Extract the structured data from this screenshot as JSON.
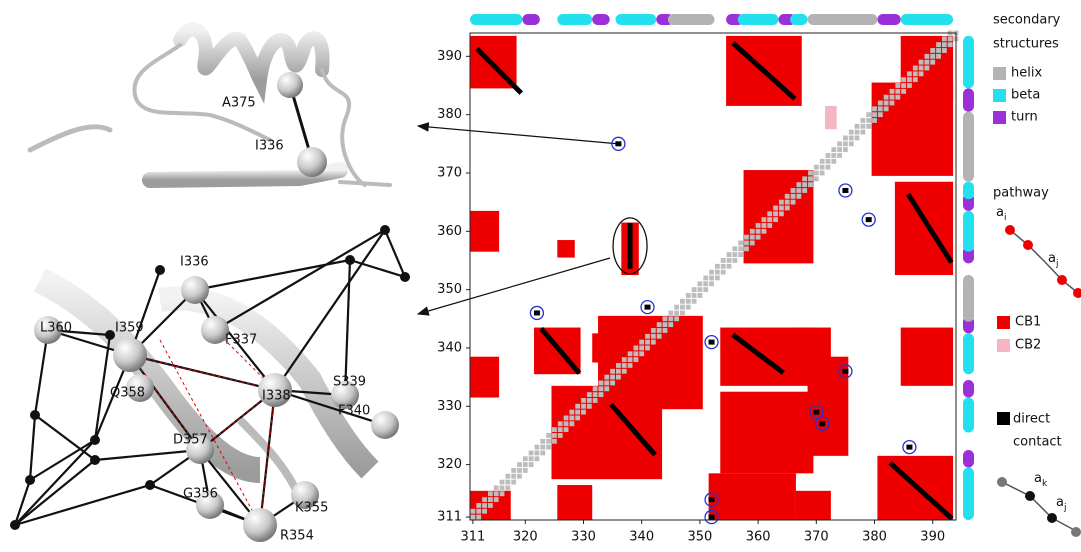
{
  "chart_data": {
    "type": "contact-map",
    "xlim": [
      310.5,
      394
    ],
    "ylim": [
      310.5,
      394
    ],
    "xticks": [
      311,
      320,
      330,
      340,
      350,
      360,
      370,
      380,
      390
    ],
    "yticks": [
      311,
      320,
      330,
      340,
      350,
      360,
      370,
      380,
      390
    ],
    "diagonal_offsets": [
      -1,
      0,
      1
    ],
    "diagonal_color": "#bdbdbd",
    "cb1_color": "#ee0000",
    "cb2_color": "#f4b6c2",
    "direct_color": "#000000",
    "circle_color": "#2233cc",
    "secondary_structure": [
      [
        311,
        319,
        "beta"
      ],
      [
        320,
        322,
        "turn"
      ],
      [
        326,
        331,
        "beta"
      ],
      [
        332,
        334,
        "turn"
      ],
      [
        336,
        342,
        "beta"
      ],
      [
        343,
        345,
        "turn"
      ],
      [
        345,
        352,
        "helix"
      ],
      [
        355,
        357,
        "turn"
      ],
      [
        357,
        363,
        "beta"
      ],
      [
        364,
        366,
        "turn"
      ],
      [
        366,
        368,
        "beta"
      ],
      [
        369,
        380,
        "helix"
      ],
      [
        381,
        384,
        "turn"
      ],
      [
        385,
        393,
        "beta"
      ]
    ],
    "cb1_regions": [
      [
        311,
        318,
        385,
        393
      ],
      [
        355,
        367,
        382,
        393
      ],
      [
        385,
        393,
        383,
        393
      ],
      [
        380,
        393,
        370,
        385
      ],
      [
        358,
        369,
        355,
        370
      ],
      [
        384,
        393,
        353,
        368
      ],
      [
        311,
        315,
        357,
        363
      ],
      [
        326,
        328,
        356,
        358
      ],
      [
        337,
        339,
        353,
        361
      ],
      [
        322,
        329,
        336,
        343
      ],
      [
        333,
        350,
        330,
        345
      ],
      [
        354,
        369,
        334,
        343
      ],
      [
        325,
        343,
        318,
        333
      ],
      [
        354,
        369,
        319,
        332
      ],
      [
        311,
        315,
        332,
        338
      ],
      [
        367,
        372,
        336,
        343
      ],
      [
        311,
        317,
        311,
        315
      ],
      [
        326,
        331,
        311,
        316
      ],
      [
        352,
        366,
        311,
        318
      ],
      [
        367,
        372,
        311,
        315
      ],
      [
        381,
        393,
        311,
        321
      ],
      [
        385,
        393,
        334,
        343
      ],
      [
        369,
        375,
        322,
        338
      ],
      [
        332,
        337,
        338,
        342
      ]
    ],
    "cb2_regions": [
      [
        372,
        373,
        378,
        381
      ]
    ],
    "direct_contacts": [
      [
        312,
        391,
        319,
        384
      ],
      [
        356,
        392,
        366,
        383
      ],
      [
        386,
        366,
        393,
        355
      ],
      [
        338,
        361,
        338,
        354
      ],
      [
        323,
        343,
        329,
        336
      ],
      [
        356,
        342,
        364,
        336
      ],
      [
        335,
        330,
        342,
        322
      ],
      [
        383,
        320,
        393,
        311
      ]
    ],
    "circled": [
      [
        336,
        375
      ],
      [
        322,
        346
      ],
      [
        341,
        347
      ],
      [
        352,
        341
      ],
      [
        375,
        336
      ],
      [
        352,
        314
      ],
      [
        352,
        311
      ],
      [
        386,
        323
      ],
      [
        371,
        327
      ],
      [
        375,
        367
      ],
      [
        379,
        362
      ],
      [
        370,
        329
      ]
    ]
  },
  "structures": {
    "top_labels": [
      "A375",
      "I336"
    ],
    "bottom_labels": [
      "I336",
      "L360",
      "I359",
      "F337",
      "Q358",
      "I338",
      "S339",
      "F340",
      "D357",
      "G356",
      "K355",
      "R354"
    ]
  },
  "legend": {
    "ss_title": [
      "secondary",
      "structures"
    ],
    "ss_items": [
      {
        "name": "helix",
        "color": "#b3b3b3"
      },
      {
        "name": "beta",
        "color": "#22e0ee"
      },
      {
        "name": "turn",
        "color": "#9b30d9"
      }
    ],
    "pathway_title": "pathway",
    "pathway_top": [
      {
        "base": "a",
        "sub": "i"
      },
      {
        "base": "a",
        "sub": "j"
      }
    ],
    "map_items": [
      {
        "name": "CB1",
        "color": "#ee0000"
      },
      {
        "name": "CB2",
        "color": "#f4b6c2"
      }
    ],
    "direct": [
      "direct",
      "contact"
    ],
    "pathway_bottom": [
      {
        "base": "a",
        "sub": "k"
      },
      {
        "base": "a",
        "sub": "j"
      }
    ]
  }
}
